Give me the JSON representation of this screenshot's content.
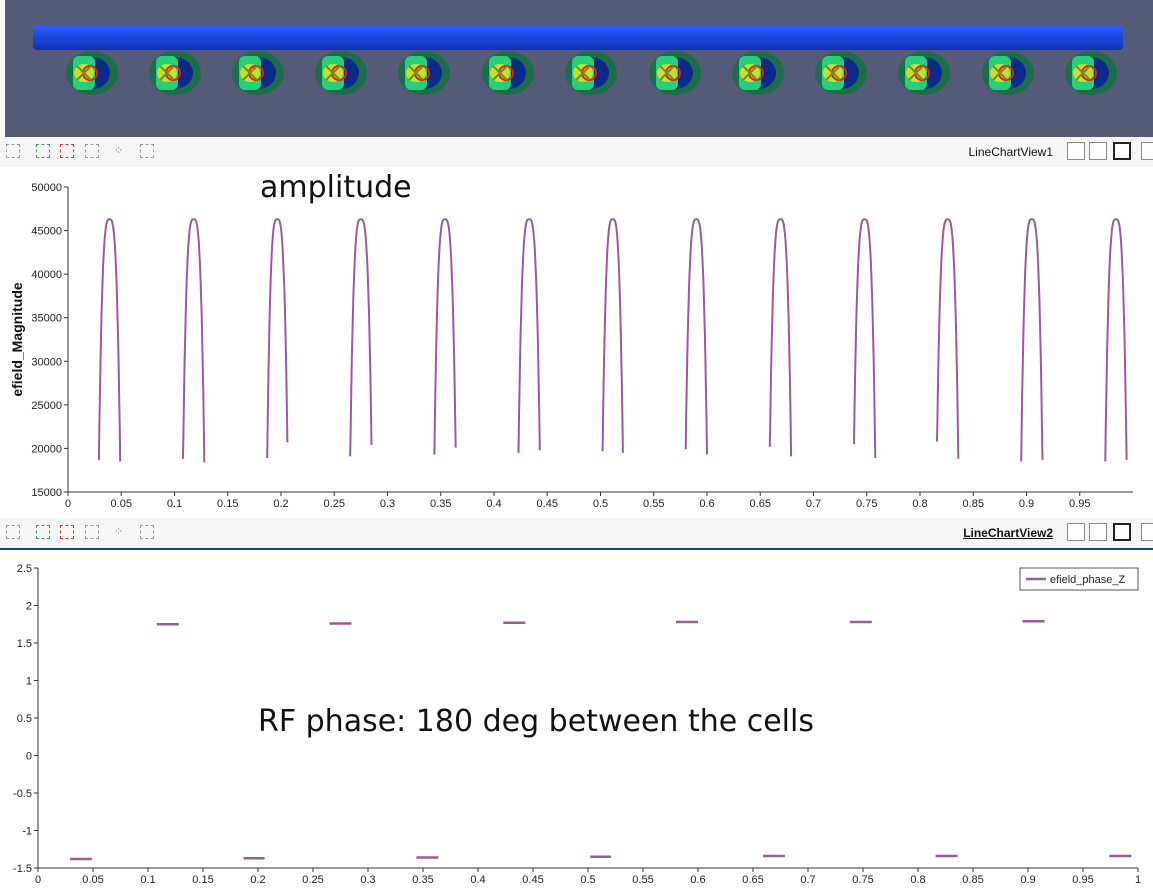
{
  "views": {
    "view1_title": "LineChartView1",
    "view2_title": "LineChartView2"
  },
  "toolbar_icons": [
    "camera-icon",
    "zoom-to-data-icon",
    "remove-icon",
    "axis-scale-icon",
    "scatter-select-icon",
    "rubber-band-icon"
  ],
  "annotations": {
    "amplitude": "amplitude",
    "rf_phase": "RF phase: 180 deg between the cells"
  },
  "colors": {
    "series": "#9b5a9b",
    "viewport_bg": "#545a78",
    "structure": "#1c47e6"
  },
  "chart_data": [
    {
      "type": "line",
      "title": "",
      "xlabel": "",
      "ylabel": "efield_Magnitude",
      "xlim": [
        0,
        1
      ],
      "ylim": [
        15000,
        50000
      ],
      "xticks": [
        "0",
        "0.05",
        "0.1",
        "0.15",
        "0.2",
        "0.25",
        "0.3",
        "0.35",
        "0.4",
        "0.45",
        "0.5",
        "0.55",
        "0.6",
        "0.65",
        "0.7",
        "0.75",
        "0.8",
        "0.85",
        "0.9",
        "0.95"
      ],
      "yticks": [
        "15000",
        "20000",
        "25000",
        "30000",
        "35000",
        "40000",
        "45000",
        "50000"
      ],
      "grid": false,
      "peak_value": 46300,
      "arches": [
        {
          "x_start": 0.029,
          "x_end": 0.049,
          "y_start": 18700,
          "y_end": 18500
        },
        {
          "x_start": 0.108,
          "x_end": 0.128,
          "y_start": 18800,
          "y_end": 18400
        },
        {
          "x_start": 0.187,
          "x_end": 0.206,
          "y_start": 18900,
          "y_end": 20700
        },
        {
          "x_start": 0.265,
          "x_end": 0.285,
          "y_start": 19100,
          "y_end": 20400
        },
        {
          "x_start": 0.344,
          "x_end": 0.364,
          "y_start": 19300,
          "y_end": 20100
        },
        {
          "x_start": 0.423,
          "x_end": 0.443,
          "y_start": 19500,
          "y_end": 19800
        },
        {
          "x_start": 0.502,
          "x_end": 0.521,
          "y_start": 19700,
          "y_end": 19500
        },
        {
          "x_start": 0.58,
          "x_end": 0.6,
          "y_start": 19900,
          "y_end": 19300
        },
        {
          "x_start": 0.659,
          "x_end": 0.679,
          "y_start": 20200,
          "y_end": 19100
        },
        {
          "x_start": 0.738,
          "x_end": 0.758,
          "y_start": 20500,
          "y_end": 18900
        },
        {
          "x_start": 0.816,
          "x_end": 0.836,
          "y_start": 20800,
          "y_end": 18800
        },
        {
          "x_start": 0.895,
          "x_end": 0.915,
          "y_start": 18500,
          "y_end": 18700
        },
        {
          "x_start": 0.974,
          "x_end": 0.994,
          "y_start": 18500,
          "y_end": 18700
        }
      ]
    },
    {
      "type": "line",
      "title": "",
      "xlabel": "",
      "ylabel": "",
      "xlim": [
        0,
        1
      ],
      "ylim": [
        -1.5,
        2.5
      ],
      "xticks": [
        "0",
        "0.05",
        "0.1",
        "0.15",
        "0.2",
        "0.25",
        "0.3",
        "0.35",
        "0.4",
        "0.45",
        "0.5",
        "0.55",
        "0.6",
        "0.65",
        "0.7",
        "0.75",
        "0.8",
        "0.85",
        "0.9",
        "0.95",
        "1"
      ],
      "yticks": [
        "-1.5",
        "-1",
        "-0.5",
        "0",
        "0.5",
        "1",
        "1.5",
        "2",
        "2.5"
      ],
      "grid": false,
      "legend_position": "top-right",
      "series": [
        {
          "name": "efield_phase_Z",
          "segments": [
            {
              "x0": 0.029,
              "x1": 0.049,
              "y": -1.38
            },
            {
              "x0": 0.108,
              "x1": 0.128,
              "y": 1.75
            },
            {
              "x0": 0.187,
              "x1": 0.206,
              "y": -1.37
            },
            {
              "x0": 0.265,
              "x1": 0.285,
              "y": 1.76
            },
            {
              "x0": 0.344,
              "x1": 0.364,
              "y": -1.36
            },
            {
              "x0": 0.423,
              "x1": 0.443,
              "y": 1.77
            },
            {
              "x0": 0.502,
              "x1": 0.521,
              "y": -1.35
            },
            {
              "x0": 0.58,
              "x1": 0.6,
              "y": 1.78
            },
            {
              "x0": 0.659,
              "x1": 0.679,
              "y": -1.34
            },
            {
              "x0": 0.738,
              "x1": 0.758,
              "y": 1.78
            },
            {
              "x0": 0.816,
              "x1": 0.836,
              "y": -1.34
            },
            {
              "x0": 0.895,
              "x1": 0.915,
              "y": 1.79
            },
            {
              "x0": 0.974,
              "x1": 0.994,
              "y": -1.34
            }
          ]
        }
      ]
    }
  ]
}
